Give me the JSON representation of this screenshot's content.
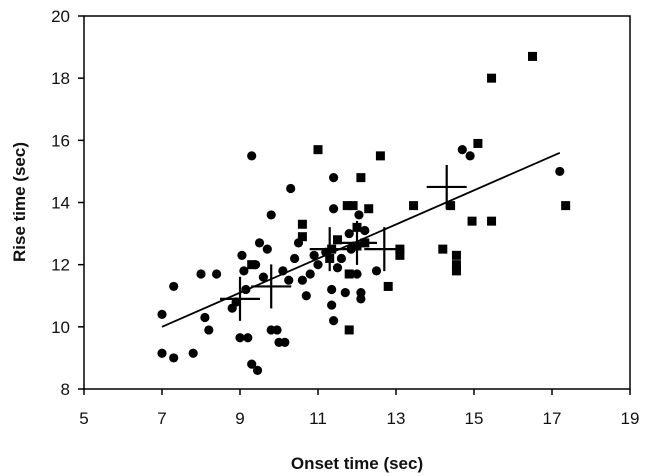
{
  "chart_data": {
    "type": "scatter",
    "title": "",
    "xlabel": "Onset time (sec)",
    "ylabel": "Rise time (sec)",
    "xlim": [
      5,
      19
    ],
    "ylim": [
      8,
      20
    ],
    "xticks": [
      5,
      7,
      9,
      11,
      13,
      15,
      17,
      19
    ],
    "yticks": [
      8,
      10,
      12,
      14,
      16,
      18,
      20
    ],
    "grid": false,
    "legend": "none",
    "series": [
      {
        "marker": "circle",
        "points": [
          [
            7.0,
            10.4
          ],
          [
            7.0,
            9.15
          ],
          [
            7.3,
            11.3
          ],
          [
            7.3,
            9.0
          ],
          [
            7.8,
            9.15
          ],
          [
            8.0,
            11.7
          ],
          [
            8.1,
            10.3
          ],
          [
            8.2,
            9.9
          ],
          [
            8.4,
            11.7
          ],
          [
            8.8,
            10.6
          ],
          [
            8.9,
            10.8
          ],
          [
            9.0,
            9.65
          ],
          [
            9.05,
            12.3
          ],
          [
            9.1,
            11.8
          ],
          [
            9.15,
            11.2
          ],
          [
            9.2,
            9.65
          ],
          [
            9.3,
            15.5
          ],
          [
            9.3,
            8.8
          ],
          [
            9.4,
            12.0
          ],
          [
            9.45,
            8.6
          ],
          [
            9.5,
            12.7
          ],
          [
            9.6,
            11.6
          ],
          [
            9.7,
            12.5
          ],
          [
            9.8,
            9.9
          ],
          [
            9.8,
            13.6
          ],
          [
            9.95,
            9.9
          ],
          [
            10.0,
            9.5
          ],
          [
            10.1,
            11.8
          ],
          [
            10.15,
            9.5
          ],
          [
            10.25,
            11.5
          ],
          [
            10.3,
            14.45
          ],
          [
            10.4,
            12.2
          ],
          [
            10.5,
            12.7
          ],
          [
            10.6,
            11.5
          ],
          [
            10.7,
            11.0
          ],
          [
            10.8,
            11.7
          ],
          [
            10.9,
            12.3
          ],
          [
            11.0,
            12.0
          ],
          [
            11.2,
            12.4
          ],
          [
            11.35,
            11.2
          ],
          [
            11.35,
            10.7
          ],
          [
            11.4,
            10.2
          ],
          [
            11.4,
            13.8
          ],
          [
            11.4,
            14.8
          ],
          [
            11.5,
            11.9
          ],
          [
            11.6,
            12.2
          ],
          [
            11.7,
            11.1
          ],
          [
            11.8,
            13.0
          ],
          [
            11.85,
            12.5
          ],
          [
            12.0,
            11.7
          ],
          [
            12.05,
            13.6
          ],
          [
            12.1,
            11.1
          ],
          [
            12.1,
            10.9
          ],
          [
            12.2,
            13.1
          ],
          [
            12.5,
            11.8
          ],
          [
            14.7,
            15.7
          ],
          [
            14.9,
            15.5
          ],
          [
            17.2,
            15.0
          ]
        ]
      },
      {
        "marker": "square",
        "points": [
          [
            9.3,
            12.0
          ],
          [
            10.6,
            12.9
          ],
          [
            10.6,
            13.3
          ],
          [
            11.0,
            15.7
          ],
          [
            11.3,
            12.2
          ],
          [
            11.35,
            12.5
          ],
          [
            11.5,
            12.8
          ],
          [
            11.75,
            13.9
          ],
          [
            11.8,
            11.7
          ],
          [
            11.8,
            9.9
          ],
          [
            11.9,
            13.9
          ],
          [
            12.0,
            12.6
          ],
          [
            12.0,
            13.2
          ],
          [
            12.1,
            14.8
          ],
          [
            12.2,
            12.7
          ],
          [
            12.3,
            13.8
          ],
          [
            12.6,
            15.5
          ],
          [
            12.8,
            11.3
          ],
          [
            13.1,
            12.5
          ],
          [
            13.1,
            12.3
          ],
          [
            13.45,
            13.9
          ],
          [
            14.2,
            12.5
          ],
          [
            14.4,
            13.9
          ],
          [
            14.55,
            12.3
          ],
          [
            14.55,
            12.0
          ],
          [
            14.55,
            11.8
          ],
          [
            14.95,
            13.4
          ],
          [
            15.1,
            15.9
          ],
          [
            15.45,
            18.0
          ],
          [
            15.45,
            13.4
          ],
          [
            16.5,
            18.7
          ],
          [
            17.35,
            13.9
          ]
        ]
      },
      {
        "marker": "plus",
        "points": [
          [
            9.0,
            10.9
          ],
          [
            9.8,
            11.3
          ],
          [
            11.3,
            12.5
          ],
          [
            12.0,
            12.7
          ],
          [
            12.7,
            12.5
          ],
          [
            14.3,
            14.5
          ]
        ]
      }
    ],
    "trendline": {
      "x": [
        7.0,
        17.2
      ],
      "y": [
        10.0,
        15.6
      ]
    }
  }
}
